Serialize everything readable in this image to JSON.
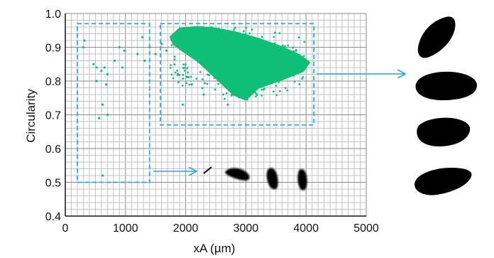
{
  "chart_data": {
    "type": "scatter",
    "xlabel": "xA (µm)",
    "ylabel": "Circularity",
    "xlim": [
      0,
      5000
    ],
    "ylim": [
      0.4,
      1.0
    ],
    "x_ticks": [
      0,
      1000,
      2000,
      3000,
      4000,
      5000
    ],
    "x_tick_labels": [
      "0",
      "1000",
      "2000",
      "3000",
      "4000",
      "5000"
    ],
    "y_ticks": [
      0.4,
      0.5,
      0.6,
      0.7,
      0.8,
      0.9,
      1.0
    ],
    "y_tick_labels": [
      "0.4",
      "0.5",
      "0.6",
      "0.7",
      "0.8",
      "0.9",
      "1.0"
    ],
    "grid": true,
    "point_color": "#0fbf78",
    "outline_color": "#29a9e0",
    "main_cluster": {
      "center_x": 2900,
      "center_y": 0.86,
      "x_range": [
        1750,
        4050
      ],
      "y_range": [
        0.74,
        0.96
      ]
    },
    "scattered_points": [
      {
        "x": 300,
        "y": 0.9
      },
      {
        "x": 320,
        "y": 0.92
      },
      {
        "x": 470,
        "y": 0.85
      },
      {
        "x": 520,
        "y": 0.84
      },
      {
        "x": 600,
        "y": 0.83
      },
      {
        "x": 650,
        "y": 0.84
      },
      {
        "x": 520,
        "y": 0.8
      },
      {
        "x": 700,
        "y": 0.82
      },
      {
        "x": 680,
        "y": 0.79
      },
      {
        "x": 620,
        "y": 0.73
      },
      {
        "x": 560,
        "y": 0.69
      },
      {
        "x": 700,
        "y": 0.7
      },
      {
        "x": 820,
        "y": 0.86
      },
      {
        "x": 900,
        "y": 0.9
      },
      {
        "x": 950,
        "y": 0.84
      },
      {
        "x": 980,
        "y": 0.89
      },
      {
        "x": 620,
        "y": 0.52
      },
      {
        "x": 1200,
        "y": 0.88
      },
      {
        "x": 1280,
        "y": 0.93
      },
      {
        "x": 1320,
        "y": 0.86
      },
      {
        "x": 1400,
        "y": 0.9
      },
      {
        "x": 1500,
        "y": 0.88
      },
      {
        "x": 1600,
        "y": 0.91
      },
      {
        "x": 1680,
        "y": 0.89
      },
      {
        "x": 2100,
        "y": 0.79
      },
      {
        "x": 2300,
        "y": 0.76
      },
      {
        "x": 2700,
        "y": 0.73
      },
      {
        "x": 1950,
        "y": 0.73
      }
    ],
    "annotation_boxes": [
      {
        "x_range": [
          200,
          1400
        ],
        "y_range": [
          0.5,
          0.97
        ],
        "name": "low-xA-group"
      },
      {
        "x_range": [
          1580,
          4130
        ],
        "y_range": [
          0.67,
          0.97
        ],
        "name": "main-group"
      }
    ],
    "colors": {
      "points": "#0fbf78",
      "boxes": "#29a9e0",
      "arrows": "#29a9e0",
      "shapes": "#000000"
    }
  }
}
